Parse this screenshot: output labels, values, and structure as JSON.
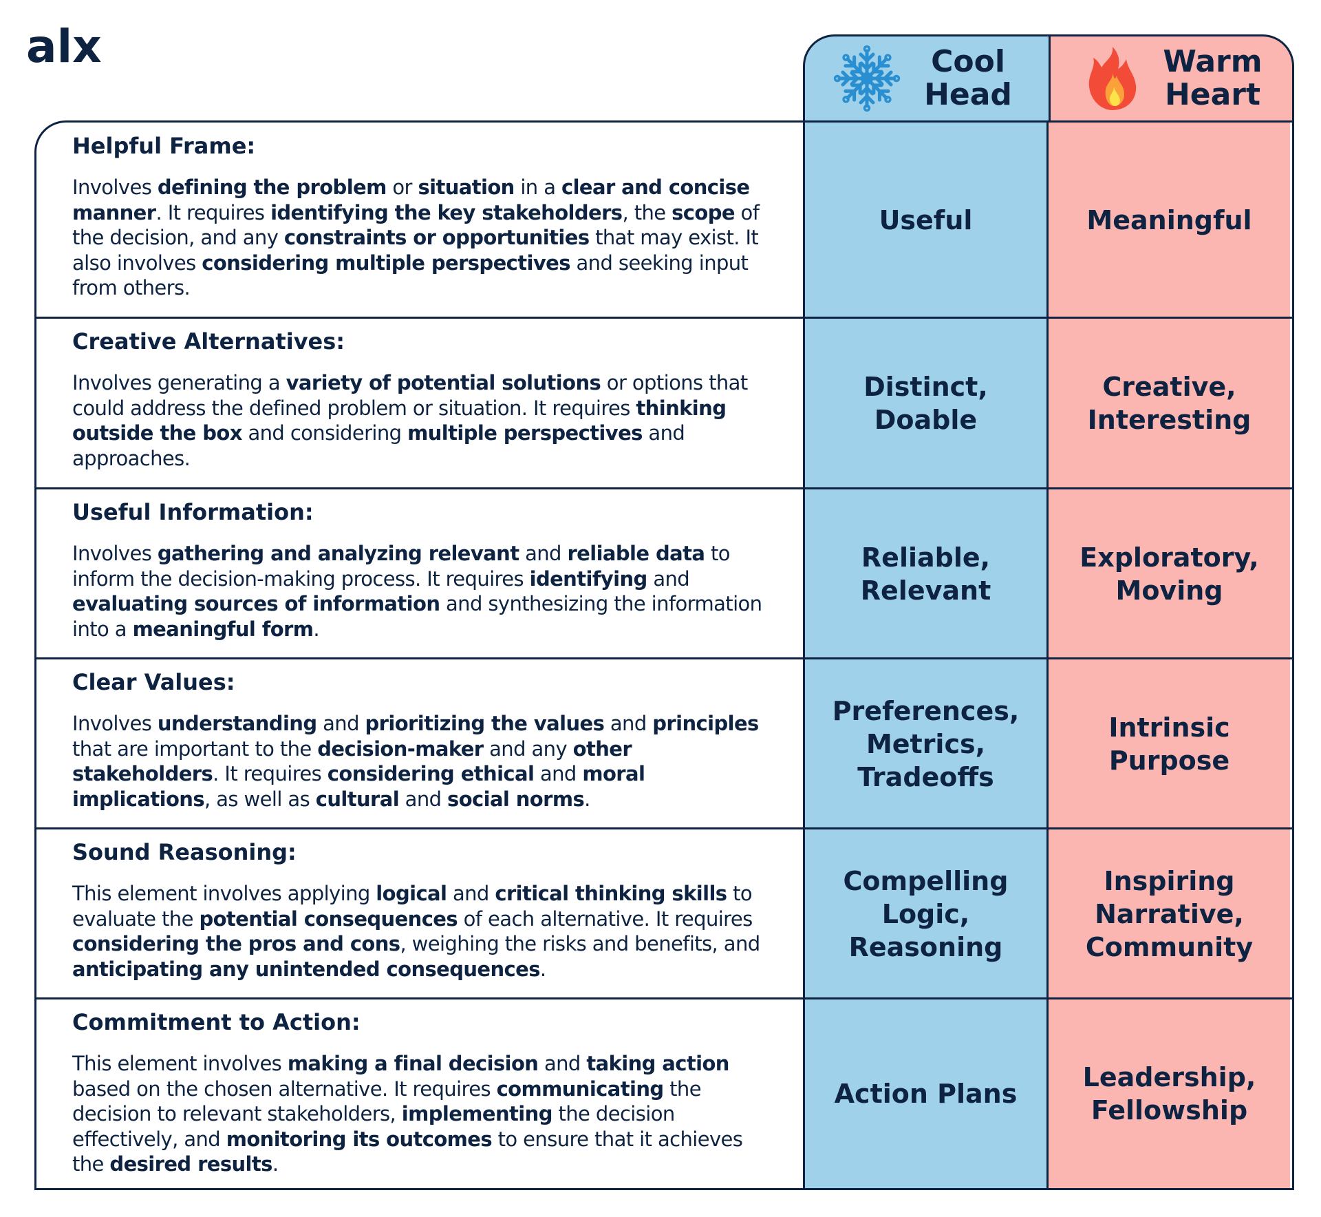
{
  "brand": {
    "logo_text": "alx"
  },
  "columns": {
    "cool": {
      "title_lines": [
        "Cool",
        "Head"
      ],
      "icon": "snowflake-icon",
      "color": "#9fd1ea"
    },
    "warm": {
      "title_lines": [
        "Warm",
        "Heart"
      ],
      "icon": "fire-icon",
      "color": "#fbb6b2"
    }
  },
  "colors": {
    "ink": "#0d2341",
    "cool": "#9fd1ea",
    "warm": "#fbb6b2"
  },
  "rows": [
    {
      "title": "Helpful Frame:",
      "body": [
        {
          "t": "Involves ",
          "b": false
        },
        {
          "t": "defining the problem",
          "b": true
        },
        {
          "t": " or ",
          "b": false
        },
        {
          "t": "situation",
          "b": true
        },
        {
          "t": " in a ",
          "b": false
        },
        {
          "t": "clear and concise manner",
          "b": true
        },
        {
          "t": ". It requires ",
          "b": false
        },
        {
          "t": "identifying the key stakeholders",
          "b": true
        },
        {
          "t": ", the ",
          "b": false
        },
        {
          "t": "scope",
          "b": true
        },
        {
          "t": " of the decision, and any ",
          "b": false
        },
        {
          "t": "constraints or opportunities",
          "b": true
        },
        {
          "t": " that may exist. It also involves ",
          "b": false
        },
        {
          "t": "considering multiple perspectives",
          "b": true
        },
        {
          "t": " and seeking input from others.",
          "b": false
        }
      ],
      "cool": [
        "Useful"
      ],
      "warm": [
        "Meaningful"
      ]
    },
    {
      "title": "Creative Alternatives:",
      "body": [
        {
          "t": "Involves generating a ",
          "b": false
        },
        {
          "t": "variety of potential solutions",
          "b": true
        },
        {
          "t": " or options that could address the defined problem or situation. It requires ",
          "b": false
        },
        {
          "t": "thinking outside the box",
          "b": true
        },
        {
          "t": " and considering ",
          "b": false
        },
        {
          "t": "multiple perspectives",
          "b": true
        },
        {
          "t": " and approaches.",
          "b": false
        }
      ],
      "cool": [
        "Distinct,",
        "Doable"
      ],
      "warm": [
        "Creative,",
        "Interesting"
      ]
    },
    {
      "title": "Useful Information:",
      "body": [
        {
          "t": "Involves ",
          "b": false
        },
        {
          "t": "gathering and analyzing relevant",
          "b": true
        },
        {
          "t": " and ",
          "b": false
        },
        {
          "t": "reliable data",
          "b": true
        },
        {
          "t": " to inform the decision-making process. It requires ",
          "b": false
        },
        {
          "t": "identifying",
          "b": true
        },
        {
          "t": " and ",
          "b": false
        },
        {
          "t": "evaluating sources of information",
          "b": true
        },
        {
          "t": " and synthesizing the information into a ",
          "b": false
        },
        {
          "t": "meaningful form",
          "b": true
        },
        {
          "t": ".",
          "b": false
        }
      ],
      "cool": [
        "Reliable,",
        "Relevant"
      ],
      "warm": [
        "Exploratory,",
        "Moving"
      ]
    },
    {
      "title": "Clear Values:",
      "body": [
        {
          "t": "Involves ",
          "b": false
        },
        {
          "t": "understanding",
          "b": true
        },
        {
          "t": " and ",
          "b": false
        },
        {
          "t": "prioritizing the values",
          "b": true
        },
        {
          "t": " and ",
          "b": false
        },
        {
          "t": "principles",
          "b": true
        },
        {
          "t": " that are important to the ",
          "b": false
        },
        {
          "t": "decision-maker",
          "b": true
        },
        {
          "t": " and any ",
          "b": false
        },
        {
          "t": "other stakeholders",
          "b": true
        },
        {
          "t": ". It requires ",
          "b": false
        },
        {
          "t": "considering ethical",
          "b": true
        },
        {
          "t": " and ",
          "b": false
        },
        {
          "t": "moral implications",
          "b": true
        },
        {
          "t": ", as well as ",
          "b": false
        },
        {
          "t": "cultural",
          "b": true
        },
        {
          "t": " and ",
          "b": false
        },
        {
          "t": "social norms",
          "b": true
        },
        {
          "t": ".",
          "b": false
        }
      ],
      "cool": [
        "Preferences,",
        "Metrics,",
        "Tradeoffs"
      ],
      "warm": [
        "Intrinsic",
        "Purpose"
      ]
    },
    {
      "title": "Sound Reasoning:",
      "body": [
        {
          "t": "This element involves applying ",
          "b": false
        },
        {
          "t": "logical",
          "b": true
        },
        {
          "t": " and ",
          "b": false
        },
        {
          "t": "critical thinking skills",
          "b": true
        },
        {
          "t": " to evaluate the ",
          "b": false
        },
        {
          "t": "potential consequences",
          "b": true
        },
        {
          "t": " of each alternative. It requires ",
          "b": false
        },
        {
          "t": "considering the pros and cons",
          "b": true
        },
        {
          "t": ", weighing the risks and benefits, and ",
          "b": false
        },
        {
          "t": "anticipating any unintended consequences",
          "b": true
        },
        {
          "t": ".",
          "b": false
        }
      ],
      "cool": [
        "Compelling",
        "Logic,",
        "Reasoning"
      ],
      "warm": [
        "Inspiring",
        "Narrative,",
        "Community"
      ]
    },
    {
      "title": "Commitment to Action:",
      "body": [
        {
          "t": "This element involves ",
          "b": false
        },
        {
          "t": "making a final decision",
          "b": true
        },
        {
          "t": " and ",
          "b": false
        },
        {
          "t": "taking action",
          "b": true
        },
        {
          "t": " based on the chosen alternative. It requires ",
          "b": false
        },
        {
          "t": "communicating",
          "b": true
        },
        {
          "t": " the decision to relevant stakeholders, ",
          "b": false
        },
        {
          "t": "implementing",
          "b": true
        },
        {
          "t": " the decision effectively, and ",
          "b": false
        },
        {
          "t": "monitoring its outcomes",
          "b": true
        },
        {
          "t": " to ensure that it achieves the ",
          "b": false
        },
        {
          "t": "desired results",
          "b": true
        },
        {
          "t": ".",
          "b": false
        }
      ],
      "cool": [
        "Action Plans"
      ],
      "warm": [
        "Leadership,",
        "Fellowship"
      ]
    }
  ]
}
